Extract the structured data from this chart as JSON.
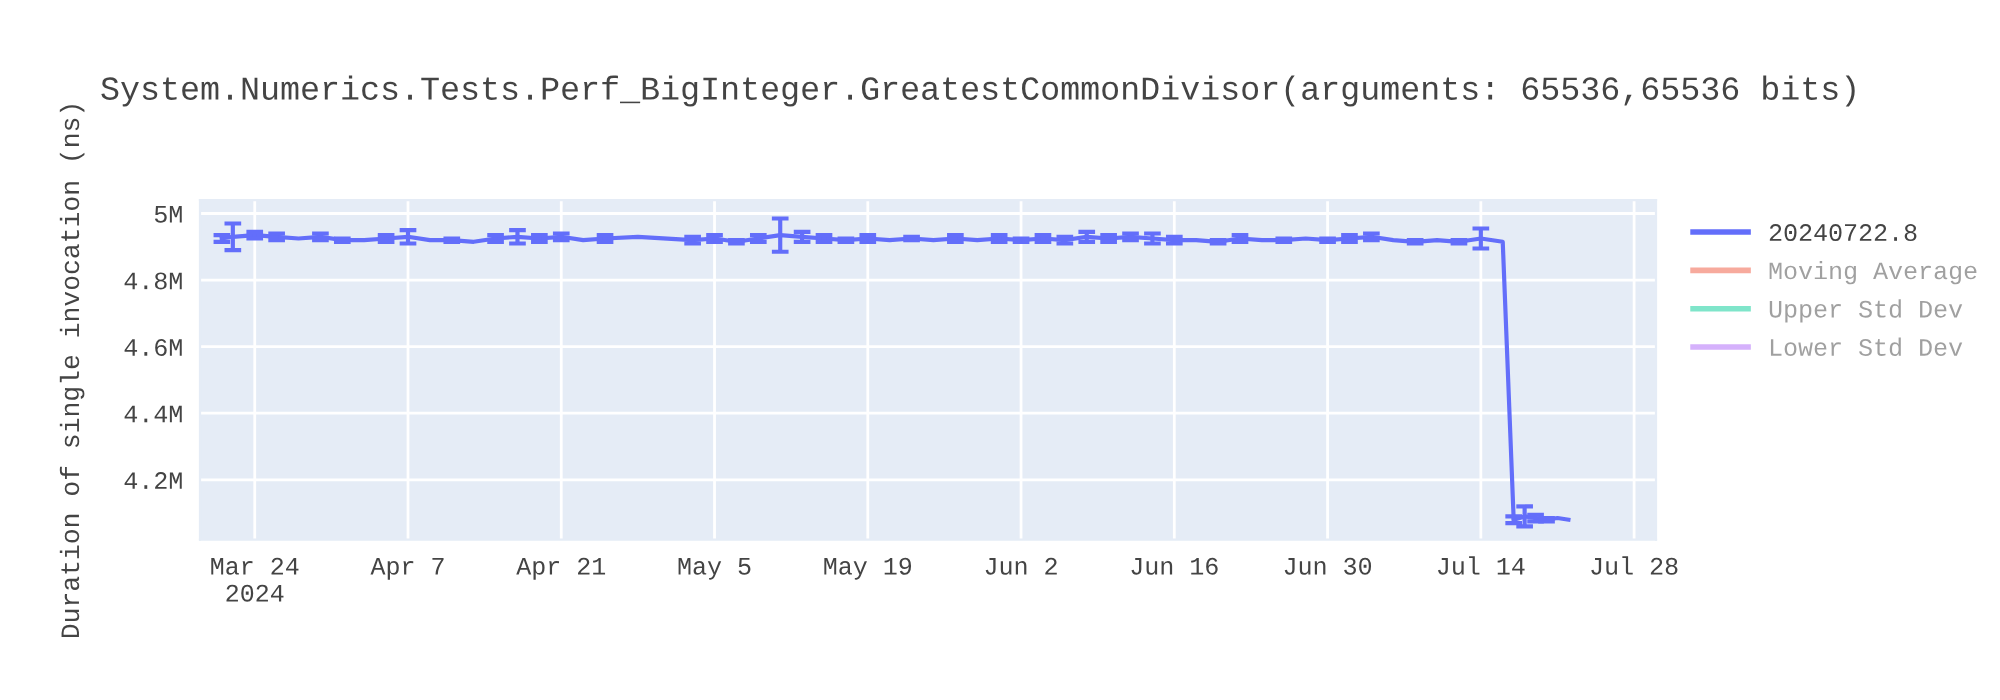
{
  "chart_data": {
    "type": "line",
    "title": "System.Numerics.Tests.Perf_BigInteger.GreatestCommonDivisor(arguments: 65536,65536 bits)",
    "ylabel": "Duration of single invocation (ns)",
    "x": [
      "2024-03-21",
      "2024-03-22",
      "2024-03-24",
      "2024-03-26",
      "2024-03-28",
      "2024-03-30",
      "2024-04-01",
      "2024-04-03",
      "2024-04-05",
      "2024-04-07",
      "2024-04-09",
      "2024-04-11",
      "2024-04-13",
      "2024-04-15",
      "2024-04-17",
      "2024-04-19",
      "2024-04-21",
      "2024-04-23",
      "2024-04-25",
      "2024-04-28",
      "2024-05-03",
      "2024-05-05",
      "2024-05-07",
      "2024-05-09",
      "2024-05-11",
      "2024-05-13",
      "2024-05-15",
      "2024-05-17",
      "2024-05-19",
      "2024-05-21",
      "2024-05-23",
      "2024-05-25",
      "2024-05-27",
      "2024-05-29",
      "2024-05-31",
      "2024-06-02",
      "2024-06-04",
      "2024-06-06",
      "2024-06-08",
      "2024-06-10",
      "2024-06-12",
      "2024-06-14",
      "2024-06-16",
      "2024-06-18",
      "2024-06-20",
      "2024-06-22",
      "2024-06-24",
      "2024-06-26",
      "2024-06-28",
      "2024-06-30",
      "2024-07-02",
      "2024-07-04",
      "2024-07-06",
      "2024-07-08",
      "2024-07-10",
      "2024-07-12",
      "2024-07-14",
      "2024-07-16",
      "2024-07-17",
      "2024-07-18",
      "2024-07-19",
      "2024-07-20",
      "2024-07-21",
      "2024-07-22"
    ],
    "series": [
      {
        "name": "20240722.8",
        "color": "#636efa",
        "values": [
          4925000,
          4930000,
          4935000,
          4930000,
          4925000,
          4930000,
          4920000,
          4920000,
          4925000,
          4930000,
          4920000,
          4920000,
          4915000,
          4925000,
          4930000,
          4925000,
          4930000,
          4920000,
          4925000,
          4930000,
          4920000,
          4925000,
          4915000,
          4925000,
          4935000,
          4930000,
          4925000,
          4920000,
          4925000,
          4920000,
          4925000,
          4920000,
          4925000,
          4920000,
          4925000,
          4920000,
          4925000,
          4920000,
          4930000,
          4925000,
          4930000,
          4925000,
          4920000,
          4920000,
          4915000,
          4925000,
          4920000,
          4920000,
          4925000,
          4920000,
          4925000,
          4930000,
          4920000,
          4915000,
          4920000,
          4915000,
          4925000,
          4915000,
          4080000,
          4090000,
          4085000,
          4080000,
          4085000,
          4080000
        ],
        "errors": [
          10000,
          40000,
          10000,
          10000,
          null,
          10000,
          5000,
          null,
          10000,
          20000,
          null,
          5000,
          null,
          10000,
          20000,
          10000,
          10000,
          null,
          10000,
          null,
          10000,
          10000,
          5000,
          10000,
          50000,
          15000,
          10000,
          5000,
          10000,
          null,
          5000,
          null,
          10000,
          null,
          10000,
          5000,
          10000,
          10000,
          15000,
          10000,
          10000,
          15000,
          10000,
          null,
          5000,
          10000,
          null,
          5000,
          null,
          5000,
          10000,
          10000,
          null,
          5000,
          null,
          5000,
          30000,
          null,
          10000,
          30000,
          10000,
          5000,
          null,
          null
        ]
      },
      {
        "name": "Moving Average",
        "color": "#ef553b",
        "values": [
          null,
          null,
          null,
          null,
          null,
          null,
          null,
          null,
          null,
          null,
          null,
          null,
          null,
          null,
          null,
          null,
          null,
          null,
          null,
          null,
          null,
          null,
          null,
          null,
          null,
          null,
          null,
          null,
          null,
          null,
          null,
          null,
          null,
          null,
          null,
          null,
          null,
          null,
          null,
          null,
          null,
          null,
          null,
          null,
          null,
          null,
          null,
          null,
          null,
          null,
          null,
          null,
          null,
          null,
          null,
          null,
          null,
          null,
          null,
          null,
          null,
          null,
          null,
          null
        ]
      },
      {
        "name": "Upper Std Dev",
        "color": "#00cc96",
        "values": [
          null,
          null,
          null,
          null,
          null,
          null,
          null,
          null,
          null,
          null,
          null,
          null,
          null,
          null,
          null,
          null,
          null,
          null,
          null,
          null,
          null,
          null,
          null,
          null,
          null,
          null,
          null,
          null,
          null,
          null,
          null,
          null,
          null,
          null,
          null,
          null,
          null,
          null,
          null,
          null,
          null,
          null,
          null,
          null,
          null,
          null,
          null,
          null,
          null,
          null,
          null,
          null,
          null,
          null,
          null,
          null,
          null,
          null,
          null,
          null,
          null,
          null,
          null,
          null
        ]
      },
      {
        "name": "Lower Std Dev",
        "color": "#ab63fa",
        "values": [
          null,
          null,
          null,
          null,
          null,
          null,
          null,
          null,
          null,
          null,
          null,
          null,
          null,
          null,
          null,
          null,
          null,
          null,
          null,
          null,
          null,
          null,
          null,
          null,
          null,
          null,
          null,
          null,
          null,
          null,
          null,
          null,
          null,
          null,
          null,
          null,
          null,
          null,
          null,
          null,
          null,
          null,
          null,
          null,
          null,
          null,
          null,
          null,
          null,
          null,
          null,
          null,
          null,
          null,
          null,
          null,
          null,
          null,
          null,
          null,
          null,
          null,
          null,
          null
        ]
      }
    ],
    "xlim": [
      "2024-03-19",
      "2024-07-30"
    ],
    "xticks": [
      {
        "value": "2024-03-24",
        "label": "Mar 24\n2024"
      },
      {
        "value": "2024-04-07",
        "label": "Apr 7"
      },
      {
        "value": "2024-04-21",
        "label": "Apr 21"
      },
      {
        "value": "2024-05-05",
        "label": "May 5"
      },
      {
        "value": "2024-05-19",
        "label": "May 19"
      },
      {
        "value": "2024-06-02",
        "label": "Jun 2"
      },
      {
        "value": "2024-06-16",
        "label": "Jun 16"
      },
      {
        "value": "2024-06-30",
        "label": "Jun 30"
      },
      {
        "value": "2024-07-14",
        "label": "Jul 14"
      },
      {
        "value": "2024-07-28",
        "label": "Jul 28"
      }
    ],
    "ylim": [
      4020000,
      5040000
    ],
    "yticks": [
      {
        "value": 4200000,
        "label": "4.2M"
      },
      {
        "value": 4400000,
        "label": "4.4M"
      },
      {
        "value": 4600000,
        "label": "4.6M"
      },
      {
        "value": 4800000,
        "label": "4.8M"
      },
      {
        "value": 5000000,
        "label": "5M"
      }
    ],
    "grid": true,
    "legend": "right",
    "marker": "none",
    "line_style": "solid"
  }
}
